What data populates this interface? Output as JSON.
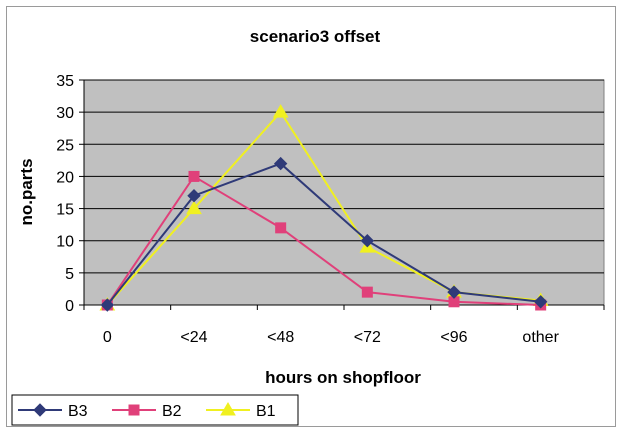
{
  "chart_data": {
    "type": "line",
    "title": "scenario3 offset",
    "xlabel": "hours on shopfloor",
    "ylabel": "no.parts",
    "categories": [
      "0",
      "<24",
      "<48",
      "<72",
      "<96",
      "other"
    ],
    "ylim": [
      0,
      35
    ],
    "yticks": [
      0,
      5,
      10,
      15,
      20,
      25,
      30,
      35
    ],
    "grid": true,
    "legend_position": "bottom-left",
    "plot_background": "#c0c0c0",
    "series": [
      {
        "name": "B3",
        "color": "#2f3a78",
        "marker": "diamond",
        "values": [
          0,
          17,
          22,
          10,
          2,
          0.5
        ]
      },
      {
        "name": "B2",
        "color": "#e0407a",
        "marker": "square",
        "values": [
          0,
          20,
          12,
          2,
          0.5,
          0
        ]
      },
      {
        "name": "B1",
        "color": "#f0f020",
        "marker": "triangle",
        "values": [
          0,
          15,
          30,
          9,
          2,
          0.7
        ]
      }
    ]
  }
}
